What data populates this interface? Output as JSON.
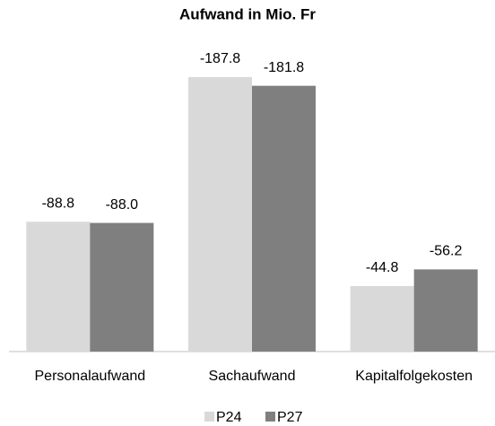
{
  "chart_data": {
    "type": "bar",
    "title": "Aufwand in Mio. Fr",
    "categories": [
      "Personalaufwand",
      "Sachaufwand",
      "Kapitalfolgekosten"
    ],
    "series": [
      {
        "name": "P24",
        "color": "#d9d9d9",
        "values": [
          -88.8,
          -187.8,
          -44.8
        ],
        "value_labels": [
          "-88.8",
          "-187.8",
          "-44.8"
        ]
      },
      {
        "name": "P27",
        "color": "#7f7f7f",
        "values": [
          -88.0,
          -181.8,
          -56.2
        ],
        "value_labels": [
          "-88.0",
          "-181.8",
          "-56.2"
        ]
      }
    ],
    "ylim": [
      0,
      -200
    ],
    "legend": "bottom"
  }
}
